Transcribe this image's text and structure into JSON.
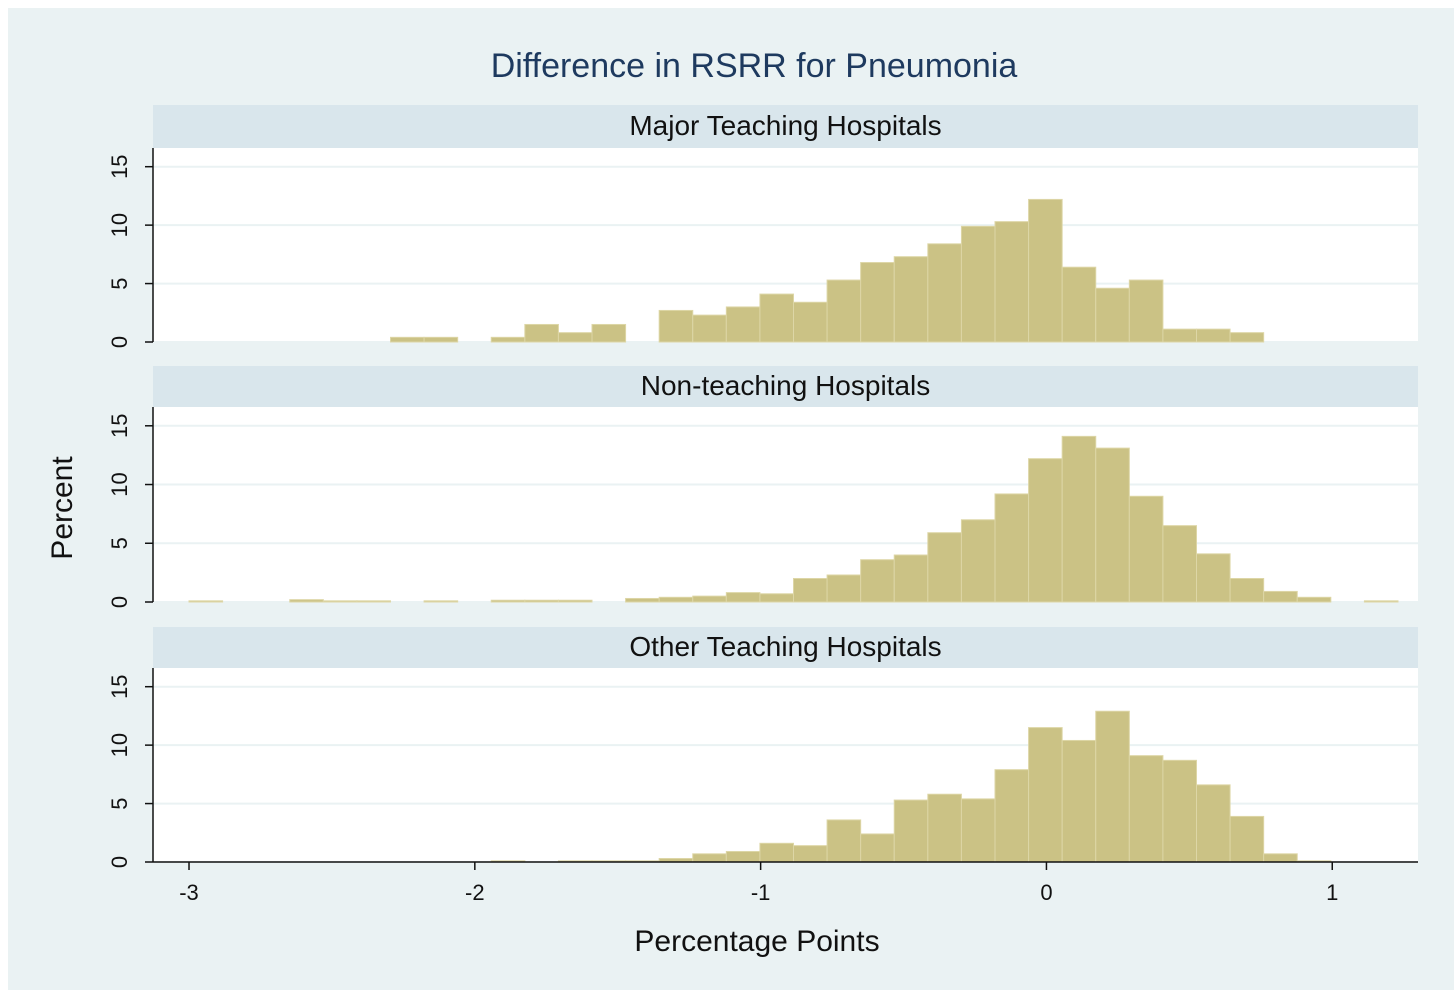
{
  "title": "Difference in RSRR for Pneumonia",
  "ylabel": "Percent",
  "xlabel": "Percentage Points",
  "chart_data": [
    {
      "type": "histogram",
      "title": "Major Teaching Hospitals",
      "color": "#cbc285",
      "grid": true,
      "bins": [
        -3,
        -2.8825,
        -2.765,
        -2.6475,
        -2.53,
        -2.4125,
        -2.295,
        -2.1775,
        -2.06,
        -1.9425,
        -1.825,
        -1.7075,
        -1.59,
        -1.4725,
        -1.355,
        -1.2375,
        -1.12,
        -1.0025,
        -0.885,
        -0.7675,
        -0.65,
        -0.5325,
        -0.415,
        -0.2975,
        -0.18,
        -0.0625,
        0.055,
        0.1725,
        0.29,
        0.4075,
        0.525,
        0.6425,
        0.76,
        0.8775,
        0.995,
        1.1125,
        1.23
      ],
      "values": [
        0,
        0,
        0,
        0,
        0,
        0,
        0.4,
        0.4,
        0,
        0.4,
        1.5,
        0.8,
        1.5,
        0,
        2.7,
        2.3,
        3.0,
        4.1,
        3.4,
        5.3,
        6.8,
        7.3,
        8.4,
        9.9,
        10.3,
        12.2,
        6.4,
        4.6,
        5.3,
        1.1,
        1.1,
        0.8,
        0,
        0,
        0,
        0
      ],
      "xlim": [
        -3.126,
        1.3
      ],
      "ylim": [
        0,
        16.6
      ],
      "yticks": [
        0,
        5,
        10,
        15
      ]
    },
    {
      "type": "histogram",
      "title": "Non-teaching Hospitals",
      "color": "#cbc285",
      "grid": true,
      "bins": [
        -3,
        -2.8825,
        -2.765,
        -2.6475,
        -2.53,
        -2.4125,
        -2.295,
        -2.1775,
        -2.06,
        -1.9425,
        -1.825,
        -1.7075,
        -1.59,
        -1.4725,
        -1.355,
        -1.2375,
        -1.12,
        -1.0025,
        -0.885,
        -0.7675,
        -0.65,
        -0.5325,
        -0.415,
        -0.2975,
        -0.18,
        -0.0625,
        0.055,
        0.1725,
        0.29,
        0.4075,
        0.525,
        0.6425,
        0.76,
        0.8775,
        0.995,
        1.1125,
        1.23
      ],
      "values": [
        0.1,
        0,
        0,
        0.2,
        0.1,
        0.1,
        0,
        0.1,
        0,
        0.15,
        0.15,
        0.15,
        0,
        0.3,
        0.4,
        0.5,
        0.8,
        0.7,
        2.0,
        2.3,
        3.6,
        4.0,
        5.9,
        7.0,
        9.2,
        12.2,
        14.1,
        13.1,
        9.0,
        6.5,
        4.1,
        2.0,
        0.9,
        0.4,
        0,
        0.1
      ],
      "xlim": [
        -3.126,
        1.3
      ],
      "ylim": [
        0,
        16.6
      ],
      "yticks": [
        0,
        5,
        10,
        15
      ]
    },
    {
      "type": "histogram",
      "title": "Other Teaching Hospitals",
      "color": "#cbc285",
      "grid": true,
      "bins": [
        -3,
        -2.8825,
        -2.765,
        -2.6475,
        -2.53,
        -2.4125,
        -2.295,
        -2.1775,
        -2.06,
        -1.9425,
        -1.825,
        -1.7075,
        -1.59,
        -1.4725,
        -1.355,
        -1.2375,
        -1.12,
        -1.0025,
        -0.885,
        -0.7675,
        -0.65,
        -0.5325,
        -0.415,
        -0.2975,
        -0.18,
        -0.0625,
        0.055,
        0.1725,
        0.29,
        0.4075,
        0.525,
        0.6425,
        0.76,
        0.8775,
        0.995,
        1.1125,
        1.23
      ],
      "values": [
        0,
        0,
        0,
        0,
        0,
        0,
        0,
        0,
        0,
        0.1,
        0,
        0.1,
        0.1,
        0.1,
        0.3,
        0.7,
        0.9,
        1.6,
        1.4,
        3.6,
        2.4,
        5.3,
        5.8,
        5.4,
        7.9,
        11.5,
        10.4,
        12.9,
        9.1,
        8.7,
        6.6,
        3.9,
        0.7,
        0.1,
        0,
        0
      ],
      "xlim": [
        -3.126,
        1.3
      ],
      "ylim": [
        0,
        16.6
      ],
      "yticks": [
        0,
        5,
        10,
        15
      ],
      "xticks": [
        -3,
        -2,
        -1,
        0,
        1
      ]
    }
  ]
}
